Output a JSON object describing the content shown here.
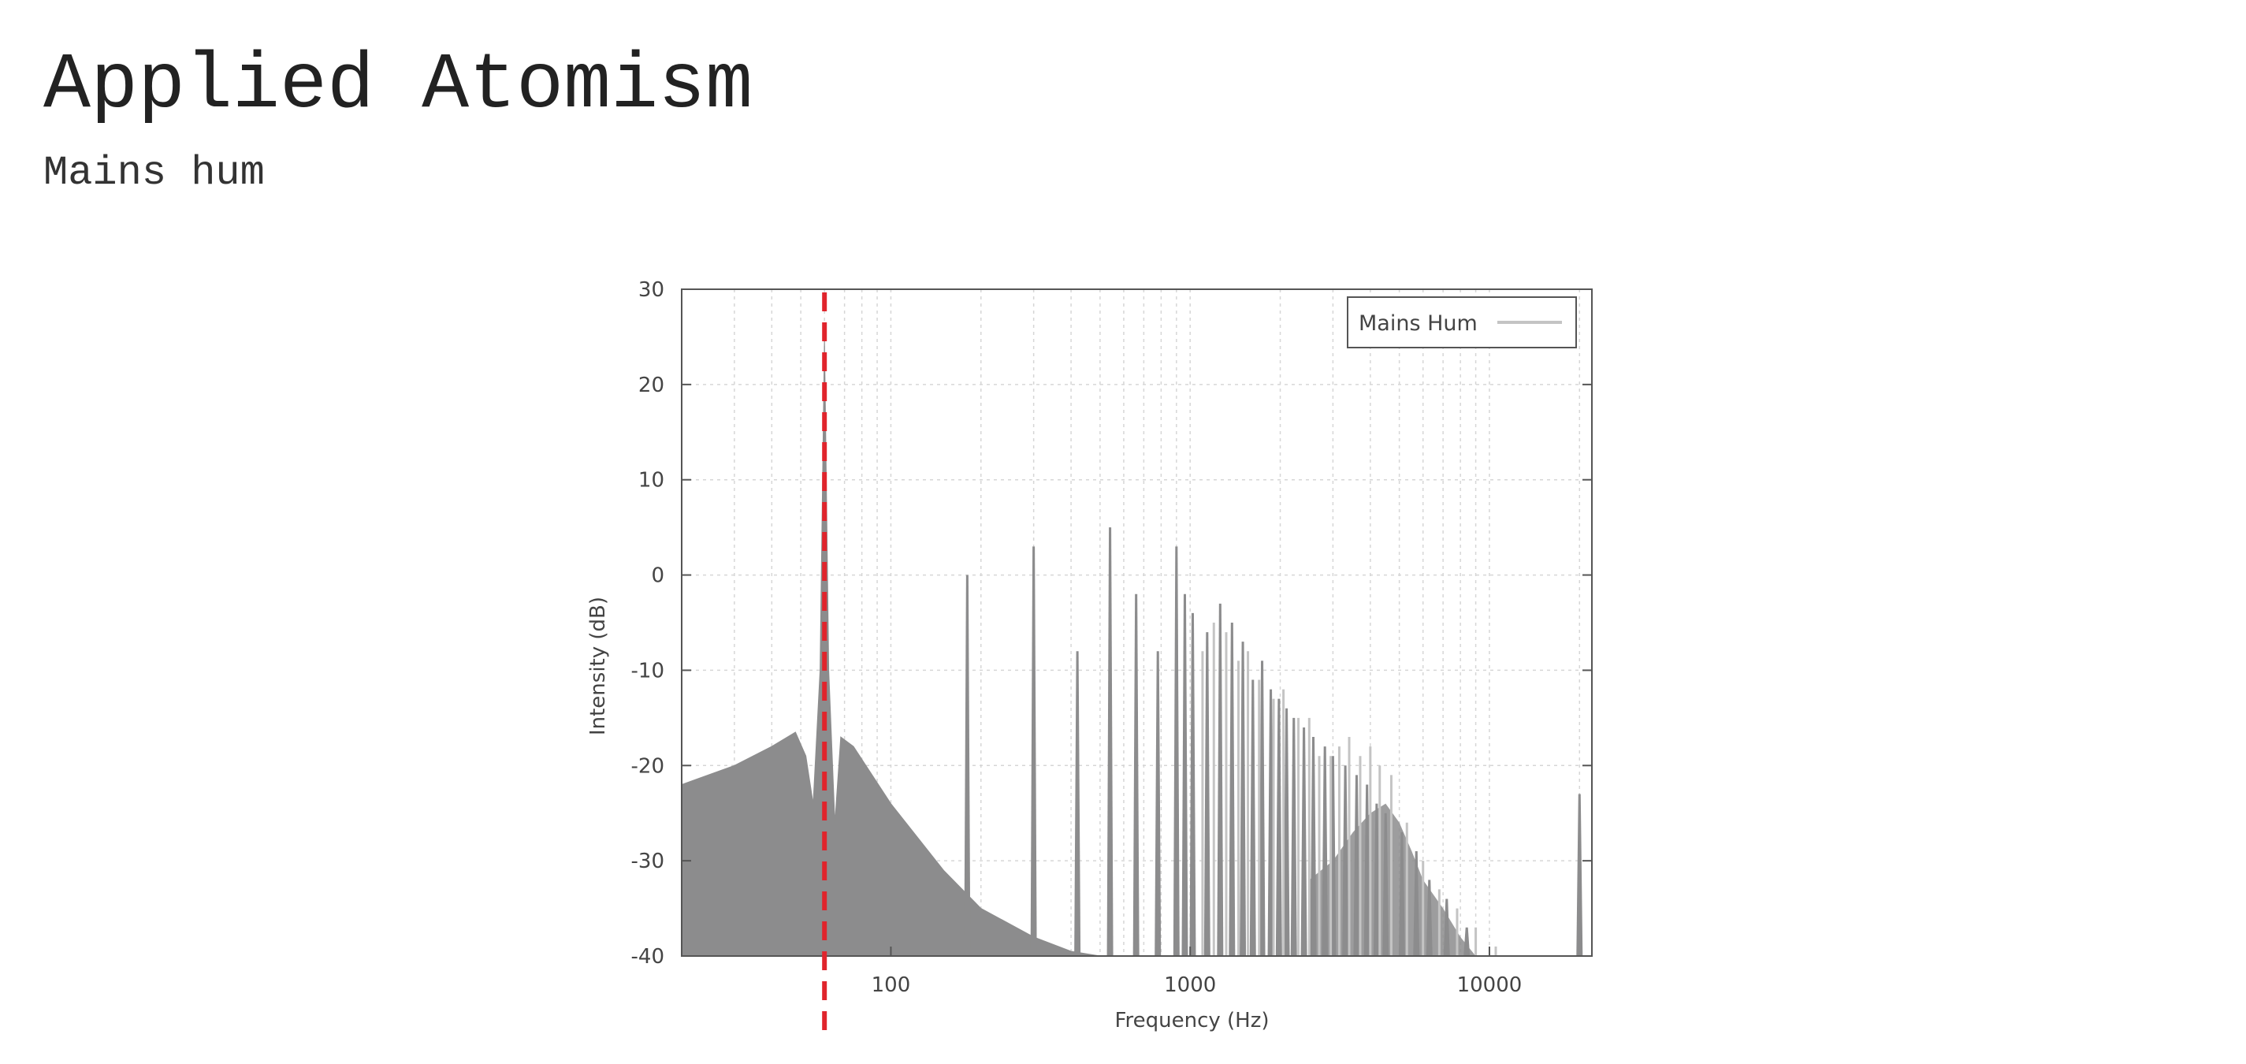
{
  "page": {
    "title": "Applied Atomism",
    "subtitle": "Mains hum"
  },
  "colors": {
    "fill": "#8c8c8d",
    "light_lines": "#c4c4c4",
    "grid": "#d6d6d6",
    "marker": "#e0242c"
  },
  "chart_data": {
    "type": "area",
    "title": "",
    "xlabel": "Frequency (Hz)",
    "ylabel": "Intensity (dB)",
    "xscale": "log",
    "xlim": [
      20,
      22000
    ],
    "ylim": [
      -40,
      30
    ],
    "x_ticks": [
      100,
      1000,
      10000
    ],
    "x_tick_labels": [
      "100",
      "1000",
      "10000"
    ],
    "y_ticks": [
      -40,
      -30,
      -20,
      -10,
      0,
      10,
      20,
      30
    ],
    "y_tick_labels": [
      "-40",
      "-30",
      "-20",
      "-10",
      "0",
      "10",
      "20",
      "30"
    ],
    "grid": true,
    "legend": {
      "position": "top-right",
      "entries": [
        "Mains Hum"
      ]
    },
    "marker_line": {
      "x": 60,
      "style": "dashed",
      "color": "#e0242c"
    },
    "series": [
      {
        "name": "Mains Hum",
        "baseline": [
          [
            20,
            -22
          ],
          [
            30,
            -20
          ],
          [
            40,
            -18
          ],
          [
            48,
            -16.5
          ],
          [
            52,
            -19
          ],
          [
            55,
            -24
          ],
          [
            58,
            -10
          ],
          [
            60,
            25
          ],
          [
            62,
            -10
          ],
          [
            65,
            -26
          ],
          [
            68,
            -17
          ],
          [
            75,
            -18
          ],
          [
            100,
            -24
          ],
          [
            150,
            -31
          ],
          [
            200,
            -35
          ],
          [
            300,
            -38
          ],
          [
            400,
            -39.5
          ],
          [
            500,
            -40
          ]
        ],
        "harmonic_peaks": [
          [
            180,
            0
          ],
          [
            300,
            3
          ],
          [
            420,
            -8
          ],
          [
            540,
            5
          ],
          [
            660,
            -2
          ],
          [
            780,
            -8
          ],
          [
            900,
            3
          ],
          [
            960,
            -2
          ],
          [
            1020,
            -4
          ],
          [
            1140,
            -6
          ],
          [
            1260,
            -3
          ],
          [
            1380,
            -5
          ],
          [
            1500,
            -7
          ],
          [
            1620,
            -11
          ],
          [
            1740,
            -9
          ],
          [
            1860,
            -12
          ],
          [
            1980,
            -13
          ],
          [
            2100,
            -14
          ],
          [
            2220,
            -15
          ],
          [
            2400,
            -16
          ],
          [
            2580,
            -17
          ],
          [
            2820,
            -18
          ],
          [
            3000,
            -19
          ],
          [
            3300,
            -20
          ],
          [
            3600,
            -21
          ],
          [
            3900,
            -22
          ],
          [
            4200,
            -24
          ],
          [
            4500,
            -25
          ],
          [
            5100,
            -27
          ],
          [
            5700,
            -29
          ],
          [
            6300,
            -32
          ],
          [
            7200,
            -34
          ],
          [
            8400,
            -37
          ],
          [
            20000,
            -23
          ]
        ],
        "light_peaks": [
          [
            1100,
            -8
          ],
          [
            1200,
            -5
          ],
          [
            1320,
            -6
          ],
          [
            1450,
            -9
          ],
          [
            1560,
            -8
          ],
          [
            1700,
            -11
          ],
          [
            1900,
            -13
          ],
          [
            2050,
            -12
          ],
          [
            2300,
            -15
          ],
          [
            2500,
            -15
          ],
          [
            2700,
            -19
          ],
          [
            2950,
            -19
          ],
          [
            3150,
            -18
          ],
          [
            3400,
            -17
          ],
          [
            3700,
            -19
          ],
          [
            4000,
            -18
          ],
          [
            4300,
            -20
          ],
          [
            4700,
            -21
          ],
          [
            5300,
            -26
          ],
          [
            6000,
            -30
          ],
          [
            6800,
            -33
          ],
          [
            7800,
            -35
          ],
          [
            9000,
            -37
          ],
          [
            10500,
            -39
          ]
        ],
        "band_fill": [
          [
            2500,
            -32
          ],
          [
            3000,
            -30
          ],
          [
            3500,
            -27
          ],
          [
            4000,
            -25
          ],
          [
            4500,
            -24
          ],
          [
            5000,
            -26
          ],
          [
            5500,
            -29
          ],
          [
            6000,
            -32
          ],
          [
            7000,
            -35
          ],
          [
            8000,
            -38
          ],
          [
            9000,
            -40
          ]
        ]
      }
    ]
  }
}
